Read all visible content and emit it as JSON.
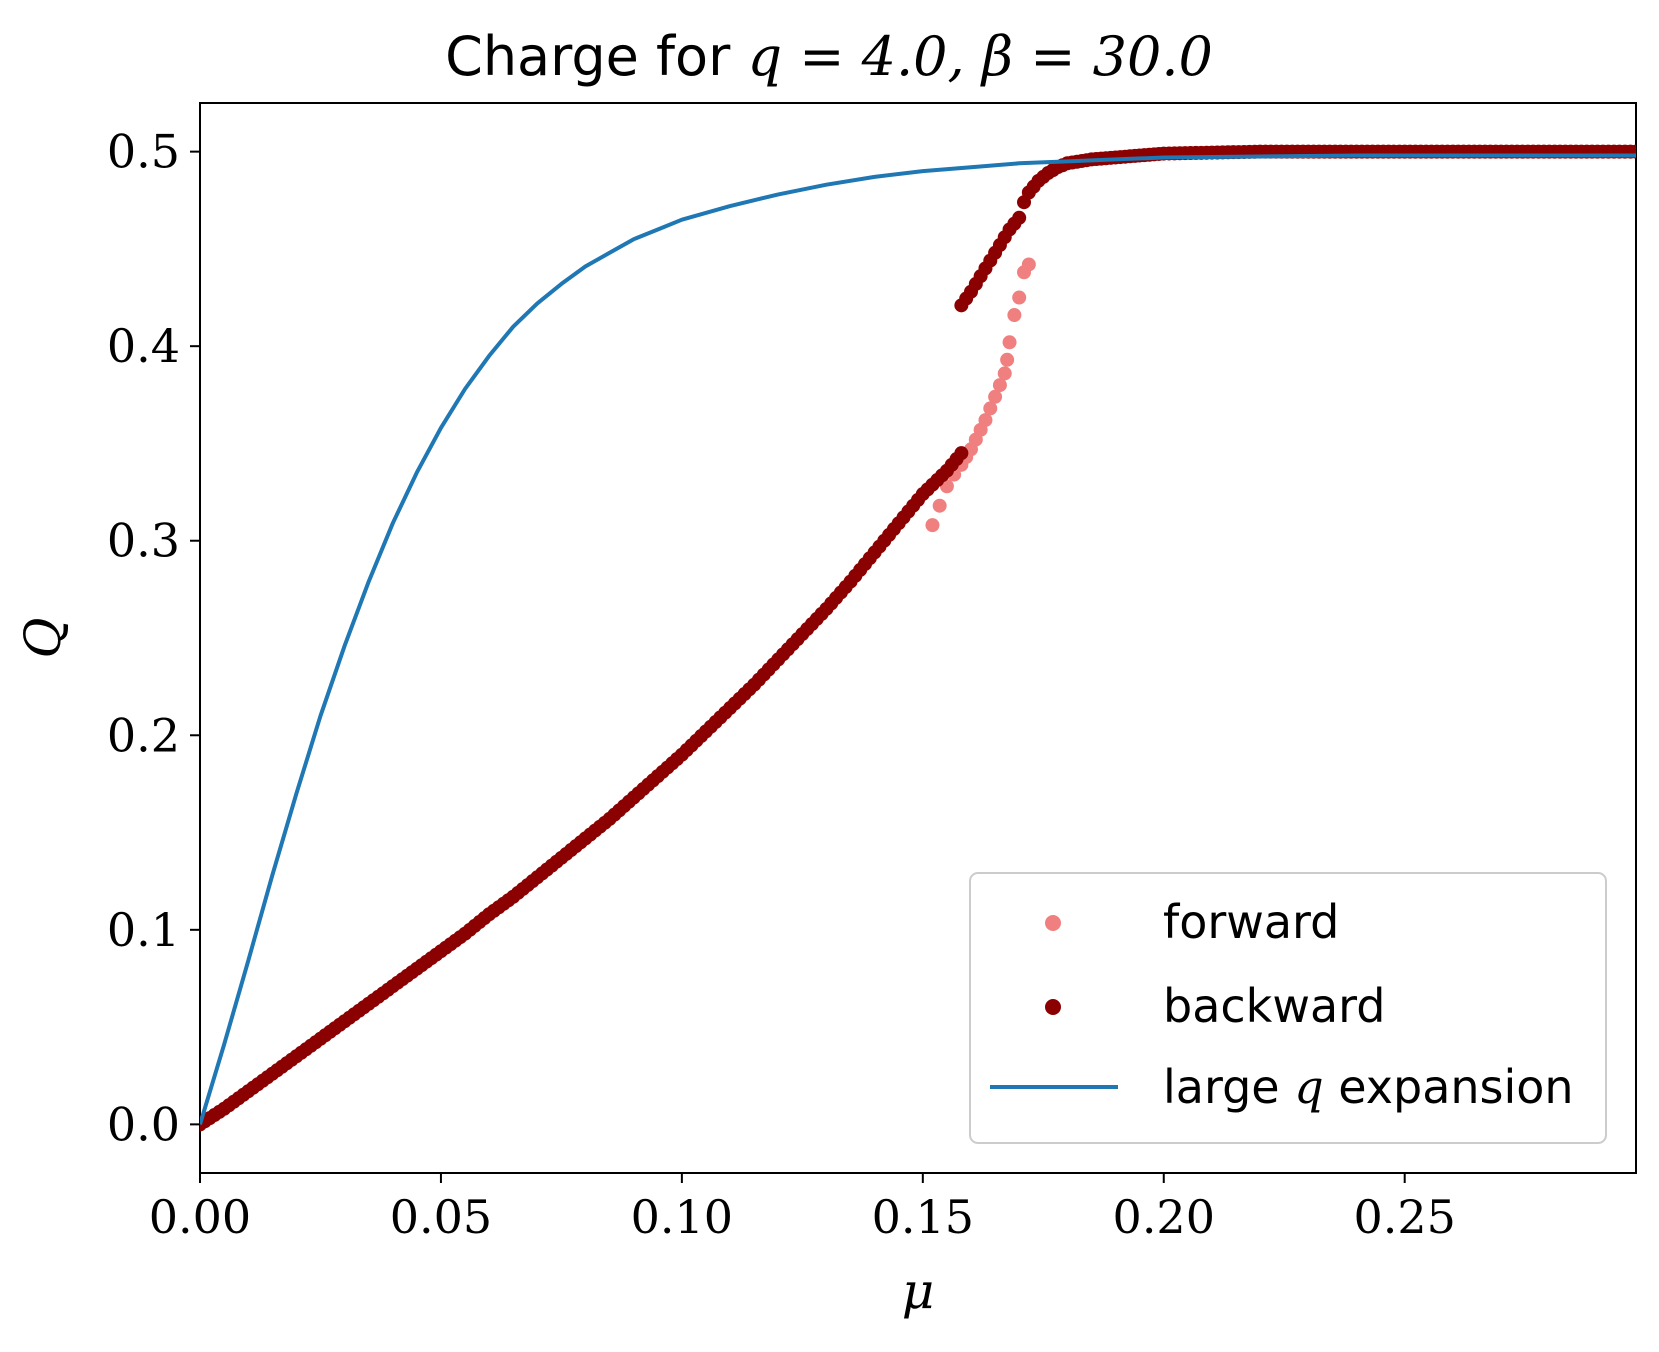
{
  "chart_data": {
    "type": "scatter",
    "title": {
      "prefix": "Charge for ",
      "var1": "q",
      "eq1": " = 4.0, ",
      "var2": "β",
      "eq2": " = 30.0"
    },
    "xlabel": "μ",
    "ylabel": "Q",
    "xlim": [
      0.0,
      0.298
    ],
    "ylim": [
      -0.025,
      0.525
    ],
    "xticks": [
      0.0,
      0.05,
      0.1,
      0.15,
      0.2,
      0.25
    ],
    "xtick_labels": [
      "0.00",
      "0.05",
      "0.10",
      "0.15",
      "0.20",
      "0.25"
    ],
    "yticks": [
      0.0,
      0.1,
      0.2,
      0.3,
      0.4,
      0.5
    ],
    "ytick_labels": [
      "0.0",
      "0.1",
      "0.2",
      "0.3",
      "0.4",
      "0.5"
    ],
    "grid": false,
    "legend_position": "bottom-right",
    "series": [
      {
        "name": "forward",
        "kind": "points",
        "color": "#f08080",
        "x": [
          0.152,
          0.1535,
          0.155,
          0.1565,
          0.158,
          0.159,
          0.16,
          0.161,
          0.162,
          0.163,
          0.164,
          0.165,
          0.166,
          0.167,
          0.1675,
          0.168,
          0.169,
          0.17,
          0.171,
          0.172
        ],
        "y": [
          0.308,
          0.318,
          0.328,
          0.334,
          0.339,
          0.343,
          0.347,
          0.352,
          0.357,
          0.362,
          0.368,
          0.374,
          0.38,
          0.386,
          0.393,
          0.402,
          0.416,
          0.425,
          0.438,
          0.442
        ]
      },
      {
        "name": "backward",
        "kind": "points",
        "color": "#8b0000",
        "x": [
          0.0,
          0.005,
          0.01,
          0.015,
          0.02,
          0.025,
          0.03,
          0.035,
          0.04,
          0.045,
          0.05,
          0.055,
          0.06,
          0.065,
          0.07,
          0.075,
          0.08,
          0.085,
          0.09,
          0.095,
          0.1,
          0.105,
          0.11,
          0.115,
          0.12,
          0.125,
          0.13,
          0.135,
          0.14,
          0.145,
          0.15,
          0.155,
          0.158,
          0.158,
          0.16,
          0.162,
          0.164,
          0.166,
          0.168,
          0.17,
          0.171,
          0.172,
          0.174,
          0.176,
          0.178,
          0.18,
          0.185,
          0.19,
          0.195,
          0.2,
          0.21,
          0.22,
          0.23,
          0.24,
          0.25,
          0.26,
          0.27,
          0.28,
          0.29,
          0.298
        ],
        "y": [
          0.0,
          0.008,
          0.017,
          0.026,
          0.035,
          0.044,
          0.053,
          0.062,
          0.071,
          0.08,
          0.089,
          0.098,
          0.108,
          0.117,
          0.127,
          0.137,
          0.147,
          0.157,
          0.168,
          0.179,
          0.19,
          0.202,
          0.214,
          0.226,
          0.239,
          0.252,
          0.265,
          0.279,
          0.294,
          0.309,
          0.324,
          0.336,
          0.345,
          0.421,
          0.428,
          0.436,
          0.444,
          0.452,
          0.46,
          0.466,
          0.474,
          0.479,
          0.485,
          0.489,
          0.492,
          0.494,
          0.496,
          0.497,
          0.498,
          0.499,
          0.4995,
          0.5,
          0.5,
          0.5,
          0.5,
          0.5,
          0.5,
          0.5,
          0.5,
          0.5
        ]
      },
      {
        "name_prefix": "large ",
        "name_var": "q",
        "name_suffix": " expansion",
        "kind": "line",
        "color": "#1f77b4",
        "x": [
          0.0,
          0.005,
          0.01,
          0.015,
          0.02,
          0.025,
          0.03,
          0.035,
          0.04,
          0.045,
          0.05,
          0.055,
          0.06,
          0.065,
          0.07,
          0.075,
          0.08,
          0.085,
          0.09,
          0.095,
          0.1,
          0.11,
          0.12,
          0.13,
          0.14,
          0.15,
          0.16,
          0.17,
          0.18,
          0.19,
          0.2,
          0.22,
          0.24,
          0.26,
          0.28,
          0.298
        ],
        "y": [
          0.0,
          0.041,
          0.084,
          0.128,
          0.17,
          0.21,
          0.246,
          0.279,
          0.309,
          0.335,
          0.358,
          0.378,
          0.395,
          0.41,
          0.422,
          0.432,
          0.441,
          0.448,
          0.455,
          0.46,
          0.465,
          0.472,
          0.478,
          0.483,
          0.487,
          0.49,
          0.492,
          0.494,
          0.495,
          0.496,
          0.497,
          0.4975,
          0.498,
          0.498,
          0.498,
          0.498
        ]
      }
    ]
  }
}
